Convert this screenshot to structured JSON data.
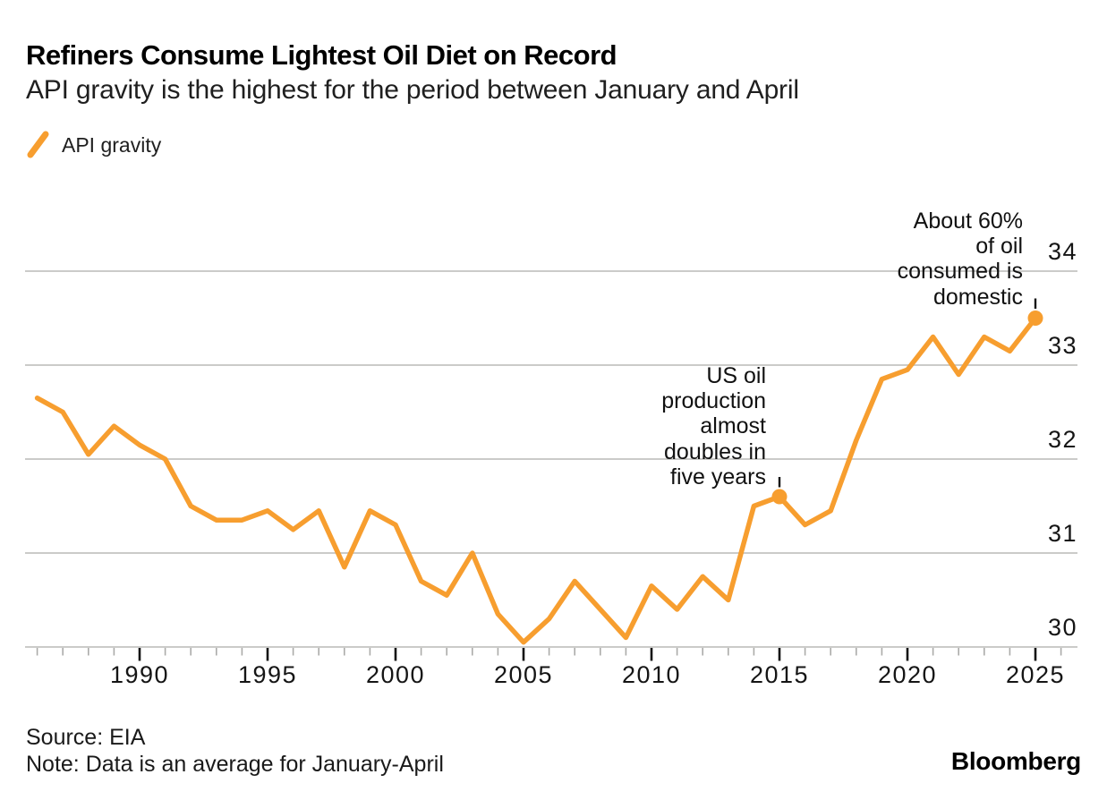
{
  "header": {
    "title": "Refiners Consume Lightest Oil Diet on Record",
    "subtitle": "API gravity is the highest for the period between January and April"
  },
  "legend": {
    "label": "API gravity"
  },
  "footer": {
    "source": "Source: EIA",
    "note": "Note: Data is an average for January-April",
    "brand": "Bloomberg"
  },
  "colors": {
    "accent": "#F79E2F",
    "grid": "#CBCBC9",
    "tick_minor": "#ABABA9",
    "tick_major": "#141414",
    "axis_text": "#151515"
  },
  "chart_data": {
    "type": "line",
    "title": "Refiners Consume Lightest Oil Diet on Record",
    "subtitle": "API gravity is the highest for the period between January and April",
    "x": [
      1986,
      1987,
      1988,
      1989,
      1990,
      1991,
      1992,
      1993,
      1994,
      1995,
      1996,
      1997,
      1998,
      1999,
      2000,
      2001,
      2002,
      2003,
      2004,
      2005,
      2006,
      2007,
      2008,
      2009,
      2010,
      2011,
      2012,
      2013,
      2014,
      2015,
      2016,
      2017,
      2018,
      2019,
      2020,
      2021,
      2022,
      2023,
      2024,
      2025
    ],
    "series": [
      {
        "name": "API gravity",
        "values": [
          32.65,
          32.5,
          32.05,
          32.35,
          32.15,
          32.0,
          31.5,
          31.35,
          31.35,
          31.45,
          31.25,
          31.45,
          30.85,
          31.45,
          31.3,
          30.7,
          30.55,
          31.0,
          30.35,
          30.05,
          30.3,
          30.7,
          30.4,
          30.1,
          30.65,
          30.4,
          30.75,
          30.5,
          31.5,
          31.6,
          31.3,
          31.45,
          32.2,
          32.85,
          32.95,
          33.3,
          32.9,
          33.3,
          33.15,
          33.5
        ]
      }
    ],
    "x_ticks_labeled": [
      1990,
      1995,
      2000,
      2005,
      2010,
      2015,
      2020,
      2025
    ],
    "x_minor_ticks": {
      "start": 1986,
      "end": 2026,
      "step": 1
    },
    "y_ticks": [
      30,
      31,
      32,
      33,
      34
    ],
    "y_range": [
      30,
      34
    ],
    "x_range": [
      1985.5,
      2026.7
    ],
    "grid": "horizontal-only",
    "legend_position": "top-left",
    "markers": [
      {
        "year": 2015,
        "value": 31.6
      },
      {
        "year": 2025,
        "value": 33.5
      }
    ],
    "annotations": [
      {
        "text": "US oil\nproduction\nalmost\ndoubles in\nfive years",
        "year": 2015,
        "value": 31.6
      },
      {
        "text": "About 60%\nof oil\nconsumed is\ndomestic",
        "year": 2025,
        "value": 33.5
      }
    ]
  }
}
